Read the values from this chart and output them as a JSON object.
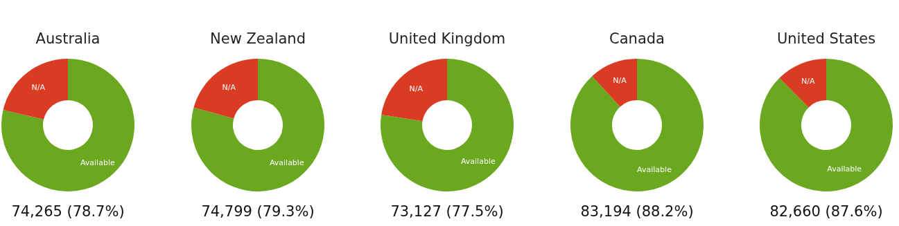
{
  "chart_data": [
    {
      "type": "donut",
      "title": "Australia",
      "categories": [
        "Available",
        "N/A"
      ],
      "values": [
        78.7,
        21.3
      ],
      "colors": [
        "#6aa820",
        "#d93c22"
      ],
      "annotations": [
        "74,265 (78.7%)"
      ],
      "legend": false
    },
    {
      "type": "donut",
      "title": "New Zealand",
      "categories": [
        "Available",
        "N/A"
      ],
      "values": [
        79.3,
        20.7
      ],
      "colors": [
        "#6aa820",
        "#d93c22"
      ],
      "annotations": [
        "74,799 (79.3%)"
      ],
      "legend": false
    },
    {
      "type": "donut",
      "title": "United Kingdom",
      "categories": [
        "Available",
        "N/A"
      ],
      "values": [
        77.5,
        22.5
      ],
      "colors": [
        "#6aa820",
        "#d93c22"
      ],
      "annotations": [
        "73,127 (77.5%)"
      ],
      "legend": false
    },
    {
      "type": "donut",
      "title": "Canada",
      "categories": [
        "Available",
        "N/A"
      ],
      "values": [
        88.2,
        11.8
      ],
      "colors": [
        "#6aa820",
        "#d93c22"
      ],
      "annotations": [
        "83,194 (88.2%)"
      ],
      "legend": false
    },
    {
      "type": "donut",
      "title": "United States",
      "categories": [
        "Available",
        "N/A"
      ],
      "values": [
        87.6,
        12.4
      ],
      "colors": [
        "#6aa820",
        "#d93c22"
      ],
      "annotations": [
        "82,660 (87.6%)"
      ],
      "legend": false
    }
  ]
}
